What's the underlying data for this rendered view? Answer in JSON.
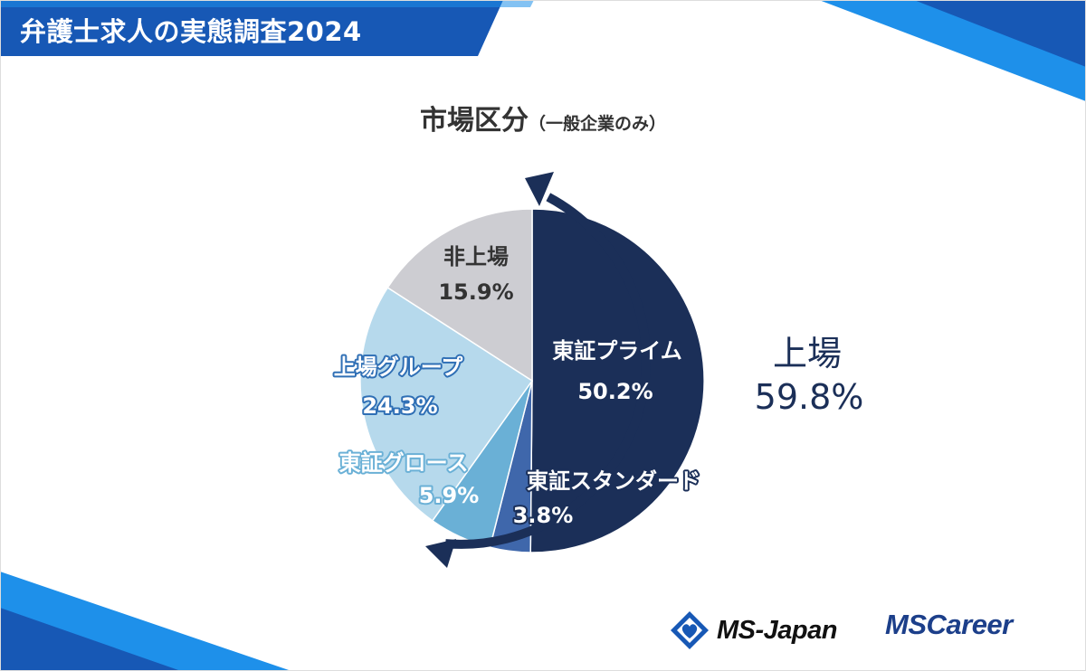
{
  "header": {
    "title": "弁護士求人の実態調査2024"
  },
  "title_main": "市場区分",
  "title_sub": "（一般企業のみ）",
  "chart_data": {
    "type": "pie",
    "title": "市場区分（一般企業のみ）",
    "start_angle": "12 o'clock",
    "direction": "clockwise",
    "slices": [
      {
        "label": "東証プライム",
        "value": 50.2,
        "value_label": "50.2%",
        "color": "#1b2f58",
        "label_color": "#ffffff",
        "outline": ""
      },
      {
        "label": "東証スタンダード",
        "value": 3.8,
        "value_label": "3.8%",
        "color": "#3f67ab",
        "label_color": "#ffffff",
        "outline": "#1b2f58"
      },
      {
        "label": "東証グロース",
        "value": 5.9,
        "value_label": "5.9%",
        "color": "#6ab0d6",
        "label_color": "#ffffff",
        "outline": "#6ab0d6"
      },
      {
        "label": "上場グループ",
        "value": 24.3,
        "value_label": "24.3%",
        "color": "#b6d9ec",
        "label_color": "#ffffff",
        "outline": "#2f6fb5"
      },
      {
        "label": "非上場",
        "value": 15.9,
        "value_label": "15.9%",
        "color": "#cdcdd2",
        "label_color": "#333333",
        "outline": ""
      }
    ],
    "annotation": {
      "label": "上場",
      "value": 59.8,
      "value_label": "59.8%",
      "color": "#1b2f58"
    }
  },
  "logos": {
    "ms_japan": "MS-Japan",
    "ms_career_ms": "MS",
    "ms_career_rest": "Career"
  },
  "colors": {
    "header_blue": "#1758b5",
    "light_blue": "#1e90ea",
    "navy": "#1b2f58"
  }
}
